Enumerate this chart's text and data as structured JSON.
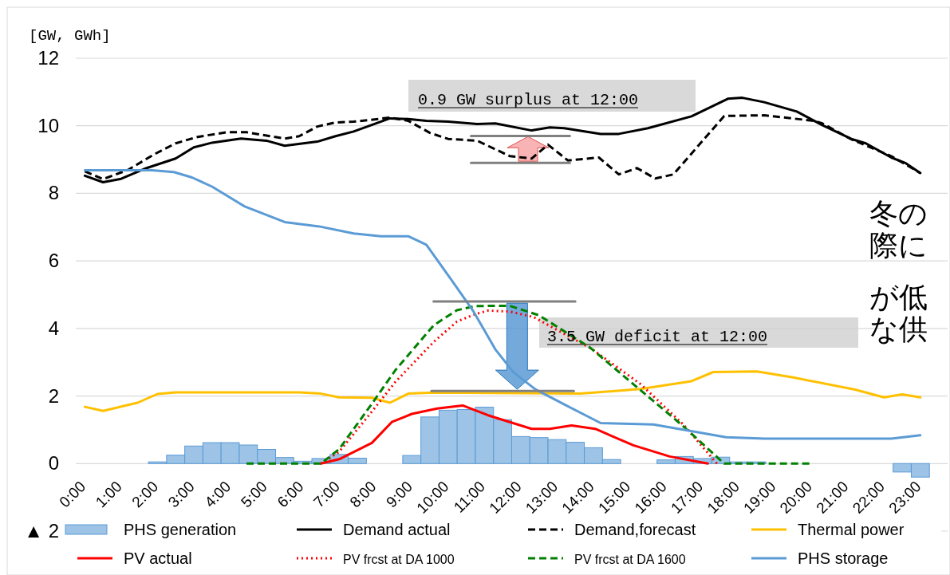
{
  "chart_data": {
    "type": "line",
    "ylabel": "[GW, GWh]",
    "xlim": [
      -0.25,
      23.75
    ],
    "ylim": [
      -2,
      12
    ],
    "xticks": [
      {
        "value": 0,
        "label": "0:00"
      },
      {
        "value": 1,
        "label": "1:00"
      },
      {
        "value": 2,
        "label": "2:00"
      },
      {
        "value": 3,
        "label": "3:00"
      },
      {
        "value": 4,
        "label": "4:00"
      },
      {
        "value": 5,
        "label": "5:00"
      },
      {
        "value": 6,
        "label": "6:00"
      },
      {
        "value": 7,
        "label": "7:00"
      },
      {
        "value": 8,
        "label": "8:00"
      },
      {
        "value": 9,
        "label": "9:00"
      },
      {
        "value": 10,
        "label": "10:00"
      },
      {
        "value": 11,
        "label": "11:00"
      },
      {
        "value": 12,
        "label": "12:00"
      },
      {
        "value": 13,
        "label": "13:00"
      },
      {
        "value": 14,
        "label": "14:00"
      },
      {
        "value": 15,
        "label": "15:00"
      },
      {
        "value": 16,
        "label": "16:00"
      },
      {
        "value": 17,
        "label": "17:00"
      },
      {
        "value": 18,
        "label": "18:00"
      },
      {
        "value": 19,
        "label": "19:00"
      },
      {
        "value": 20,
        "label": "20:00"
      },
      {
        "value": 21,
        "label": "21:00"
      },
      {
        "value": 22,
        "label": "22:00"
      },
      {
        "value": 23,
        "label": "23:00"
      }
    ],
    "yticks": [
      {
        "value": -2,
        "label": "▲ 2"
      },
      0,
      2,
      4,
      6,
      8,
      10,
      12
    ],
    "grid": "y",
    "legend": "bottom",
    "marker": "none",
    "series": [
      {
        "name": "PHS generation",
        "type": "bar",
        "color": "#9dc3e6",
        "x": [
          2,
          2.5,
          3,
          3.5,
          4,
          4.5,
          5,
          5.5,
          6,
          6.5,
          7,
          7.5,
          9,
          9.5,
          10,
          10.5,
          11,
          11.5,
          12,
          12.5,
          13,
          13.5,
          14,
          14.5,
          16,
          16.5,
          17,
          17.5,
          18,
          18.5,
          22.5,
          23
        ],
        "values": [
          0.05,
          0.25,
          0.52,
          0.62,
          0.62,
          0.55,
          0.42,
          0.18,
          0.07,
          0.15,
          0.27,
          0.16,
          0.24,
          1.38,
          1.58,
          1.6,
          1.67,
          1.3,
          0.8,
          0.77,
          0.71,
          0.63,
          0.47,
          0.12,
          0.11,
          0.21,
          0.15,
          0.19,
          0.05,
          0.05,
          -0.25,
          -0.4
        ]
      },
      {
        "name": "Demand actual",
        "color": "#000000",
        "line_style": "solid",
        "x": [
          0,
          0.5,
          1,
          1.7,
          2.5,
          3,
          3.5,
          4.3,
          5,
          5.5,
          6.4,
          6.9,
          7.4,
          8.4,
          8.9,
          9.4,
          10,
          10.8,
          11.3,
          12.3,
          12.8,
          13.2,
          14.2,
          14.7,
          15.5,
          16.7,
          17.7,
          18.1,
          18.7,
          19.6,
          20.3,
          21.1,
          21.5,
          22.2,
          22.6,
          23
        ],
        "values": [
          8.52,
          8.33,
          8.43,
          8.75,
          9.03,
          9.36,
          9.5,
          9.62,
          9.56,
          9.41,
          9.53,
          9.69,
          9.83,
          10.22,
          10.2,
          10.15,
          10.12,
          10.05,
          10.07,
          9.86,
          9.95,
          9.93,
          9.76,
          9.76,
          9.93,
          10.28,
          10.8,
          10.83,
          10.7,
          10.42,
          10.02,
          9.61,
          9.48,
          9.06,
          8.89,
          8.6
        ]
      },
      {
        "name": "Demand,forecast",
        "color": "#000000",
        "line_style": "dashed",
        "x": [
          0,
          0.5,
          1.2,
          1.9,
          2.5,
          3.1,
          3.9,
          4.45,
          5.5,
          5.9,
          6.4,
          6.9,
          7.4,
          8.4,
          8.9,
          9.5,
          10,
          10.8,
          11.7,
          12.3,
          12.75,
          13.3,
          14.15,
          14.7,
          15.2,
          15.7,
          16.2,
          17.6,
          18.7,
          20.05,
          20.3,
          21.1,
          22.2,
          23
        ],
        "values": [
          8.65,
          8.42,
          8.7,
          9.15,
          9.48,
          9.67,
          9.81,
          9.81,
          9.62,
          9.69,
          9.98,
          10.1,
          10.12,
          10.24,
          10.15,
          9.79,
          9.61,
          9.56,
          9.1,
          9.03,
          9.44,
          8.97,
          9.06,
          8.56,
          8.75,
          8.44,
          8.56,
          10.29,
          10.31,
          10.15,
          10.07,
          9.6,
          9.1,
          8.6
        ]
      },
      {
        "name": "Thermal power",
        "color": "#ffc000",
        "line_style": "solid",
        "x": [
          0,
          0.5,
          1.45,
          2,
          2.5,
          5.9,
          6.5,
          7,
          7.9,
          8.4,
          8.9,
          9.6,
          13.65,
          15.3,
          16.7,
          17.3,
          18.5,
          19.5,
          21.2,
          22,
          22.5,
          23
        ],
        "values": [
          1.68,
          1.56,
          1.8,
          2.06,
          2.11,
          2.11,
          2.07,
          1.96,
          1.95,
          1.8,
          2.07,
          2.1,
          2.07,
          2.21,
          2.44,
          2.71,
          2.73,
          2.55,
          2.19,
          1.96,
          2.05,
          1.96
        ]
      },
      {
        "name": "PV actual",
        "color": "#ff0000",
        "line_style": "solid",
        "x": [
          6.5,
          7,
          7.9,
          8.45,
          9,
          9.7,
          10.4,
          11.1,
          12.3,
          12.8,
          13.4,
          14.05,
          15.1,
          16.1,
          17.15
        ],
        "values": [
          0,
          0.13,
          0.61,
          1.23,
          1.47,
          1.63,
          1.72,
          1.43,
          1.03,
          1.03,
          1.13,
          1.03,
          0.54,
          0.21,
          0
        ]
      },
      {
        "name": "PV frcst at DA 1000",
        "color": "#ff0000",
        "line_style": "dotted",
        "x": [
          6.5,
          7,
          7.9,
          8.55,
          9.6,
          10.24,
          10.74,
          11.1,
          11.7,
          12.35,
          13.95,
          15.3,
          16.5,
          17.4
        ],
        "values": [
          0,
          0.35,
          1.54,
          2.42,
          3.6,
          4.2,
          4.42,
          4.53,
          4.5,
          4.34,
          3.4,
          2.35,
          1.13,
          0
        ]
      },
      {
        "name": "PV frcst at DA 1600",
        "color": "#008000",
        "line_style": "dashed",
        "x": [
          4.45,
          6.5,
          7,
          7.9,
          8.55,
          9.6,
          10.24,
          10.74,
          11.1,
          11.7,
          12.5,
          13.9,
          15.3,
          16.5,
          17.6,
          20
        ],
        "values": [
          0,
          0,
          0.43,
          1.77,
          2.77,
          4.09,
          4.54,
          4.66,
          4.67,
          4.67,
          4.39,
          3.44,
          2.17,
          1.08,
          0,
          0
        ]
      },
      {
        "name": "PHS storage",
        "color": "#5b9bd5",
        "line_style": "solid",
        "x": [
          0,
          1.85,
          2.45,
          2.95,
          3.5,
          4.4,
          5.5,
          6.45,
          7.4,
          8.15,
          8.9,
          9.4,
          10.1,
          10.7,
          11.3,
          11.8,
          12.4,
          13.2,
          14.2,
          15.65,
          16.5,
          17.65,
          18.7,
          22.2,
          23
        ],
        "values": [
          8.68,
          8.68,
          8.63,
          8.47,
          8.2,
          7.61,
          7.15,
          7.02,
          6.81,
          6.73,
          6.73,
          6.48,
          5.42,
          4.5,
          3.38,
          2.7,
          2.2,
          1.75,
          1.2,
          1.16,
          1.0,
          0.78,
          0.74,
          0.74,
          0.84
        ]
      },
      {
        "color": "#808080",
        "line_style": "solid",
        "x": [
          10.63,
          13.35
        ],
        "values": [
          9.7,
          9.7
        ]
      },
      {
        "color": "#808080",
        "line_style": "solid",
        "x": [
          10.63,
          13.35
        ],
        "values": [
          8.9,
          8.9
        ]
      },
      {
        "color": "#808080",
        "line_style": "solid",
        "x": [
          9.6,
          13.5
        ],
        "values": [
          4.8,
          4.8
        ]
      },
      {
        "color": "#808080",
        "line_style": "solid",
        "x": [
          9.54,
          13.46
        ],
        "values": [
          2.15,
          2.15
        ]
      }
    ],
    "annotations": [
      "0.9 GW surplus at 12:00",
      "3.5 GW deficit at 12:00",
      "冬の",
      "際に",
      "が低",
      "な供"
    ]
  }
}
